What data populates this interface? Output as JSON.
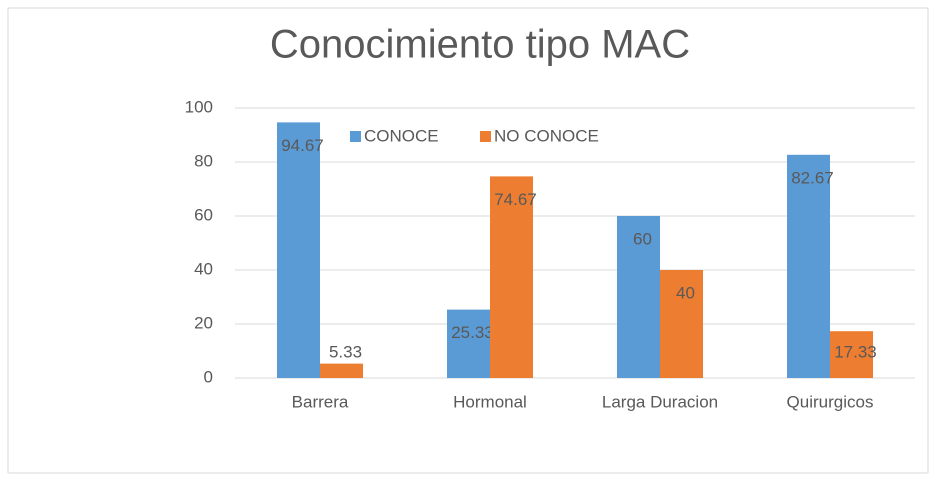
{
  "chart_data": {
    "type": "bar",
    "title": "Conocimiento tipo MAC",
    "categories": [
      "Barrera",
      "Hormonal",
      "Larga Duracion",
      "Quirurgicos"
    ],
    "series": [
      {
        "name": "CONOCE",
        "color": "#5b9bd5",
        "values": [
          94.67,
          25.33,
          60,
          82.67
        ]
      },
      {
        "name": "NO CONOCE",
        "color": "#ed7d31",
        "values": [
          5.33,
          74.67,
          40,
          17.33
        ]
      }
    ],
    "ylim": [
      0,
      100
    ],
    "yticks": [
      0,
      20,
      40,
      60,
      80,
      100
    ],
    "grid": true,
    "legend": "top"
  }
}
